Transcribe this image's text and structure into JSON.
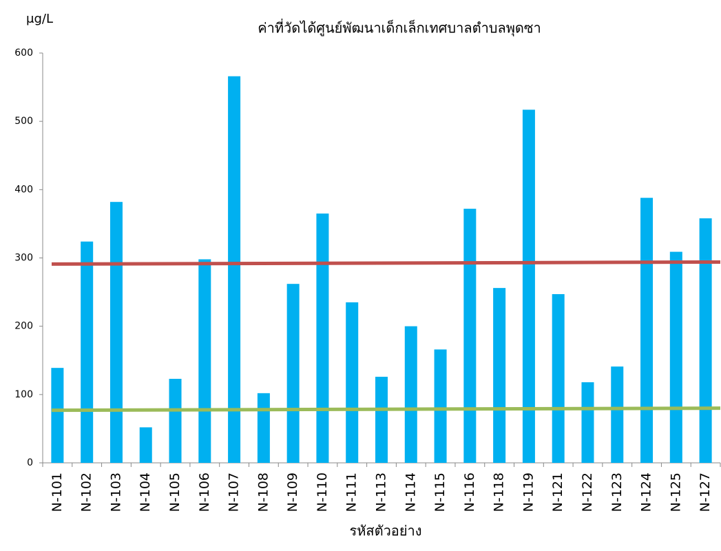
{
  "chart_data": {
    "type": "bar",
    "title": "ค่าที่วัดได้ศูนย์พัฒนาเด็กเล็กเทศบาลตำบลพุดซา",
    "y_unit": "μg/L",
    "x_label": "รหัสตัวอย่าง",
    "categories": [
      "N-101",
      "N-102",
      "N-103",
      "N-104",
      "N-105",
      "N-106",
      "N-107",
      "N-108",
      "N-109",
      "N-110",
      "N-111",
      "N-113",
      "N-114",
      "N-115",
      "N-116",
      "N-118",
      "N-119",
      "N-121",
      "N-122",
      "N-123",
      "N-124",
      "N-125",
      "N-127"
    ],
    "values": [
      139,
      324,
      382,
      52,
      123,
      298,
      566,
      102,
      262,
      365,
      235,
      126,
      200,
      166,
      372,
      256,
      517,
      247,
      118,
      141,
      388,
      309,
      358
    ],
    "color": "#00b0f0",
    "ylim": [
      0,
      600
    ],
    "yticks": [
      0,
      100,
      200,
      300,
      400,
      500,
      600
    ],
    "grid": false,
    "reference_lines": [
      {
        "color": "#c0504d",
        "values": [
          291,
          294
        ]
      },
      {
        "color": "#9bbb59",
        "values": [
          77,
          80
        ]
      }
    ]
  }
}
